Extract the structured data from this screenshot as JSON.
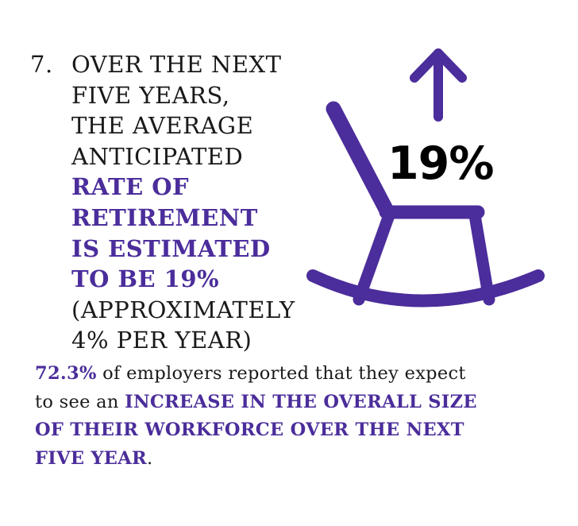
{
  "fact": {
    "number": "7.",
    "headline_lines": [
      {
        "text": "OVER THE NEXT",
        "style": "dark"
      },
      {
        "text": "FIVE YEARS,",
        "style": "dark"
      },
      {
        "text": "THE AVERAGE",
        "style": "dark"
      },
      {
        "text": "ANTICIPATED",
        "style": "dark"
      },
      {
        "text": "RATE OF",
        "style": "accent"
      },
      {
        "text": "RETIREMENT",
        "style": "accent"
      },
      {
        "text": "IS ESTIMATED",
        "style": "accent"
      },
      {
        "text": "TO BE 19%",
        "style": "accent"
      },
      {
        "text": "(APPROXIMATELY",
        "style": "dark"
      },
      {
        "text": "4% PER YEAR)",
        "style": "dark"
      }
    ],
    "graphic_value": "19%"
  },
  "bottom": {
    "line1_highlight": "72.3%",
    "line1_rest": " of employers reported that they expect",
    "line2_plain": "to see an ",
    "line2_highlight": "INCREASE IN THE OVERALL SIZE",
    "line3_highlight": "OF THEIR WORKFORCE OVER THE NEXT",
    "line4_highlight": "FIVE YEAR",
    "line4_end": "."
  },
  "colors": {
    "accent": "#4b2d9b",
    "text": "#1a1a1a",
    "background": "#ffffff"
  },
  "icons": [
    "rocking-chair-icon",
    "arrow-up-icon"
  ]
}
